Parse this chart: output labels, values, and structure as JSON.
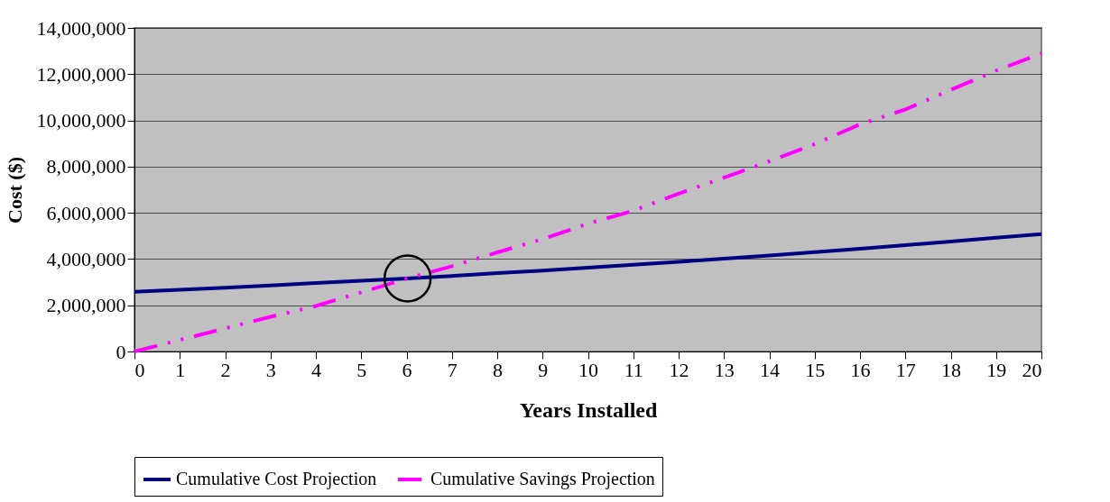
{
  "chart_data": {
    "type": "line",
    "xlabel": "Years Installed",
    "ylabel": "Cost ($)",
    "x": [
      0,
      1,
      2,
      3,
      4,
      5,
      6,
      7,
      8,
      9,
      10,
      11,
      12,
      13,
      14,
      15,
      16,
      17,
      18,
      19,
      20
    ],
    "xlim": [
      0,
      20
    ],
    "xticks": [
      0,
      1,
      2,
      3,
      4,
      5,
      6,
      7,
      8,
      9,
      10,
      11,
      12,
      13,
      14,
      15,
      16,
      17,
      18,
      19,
      20
    ],
    "ylim": [
      0,
      14000000
    ],
    "yticks": [
      0,
      {
        "value": 2000000,
        "label": "2,000,000"
      },
      {
        "value": 4000000,
        "label": "4,000,000"
      },
      {
        "value": 6000000,
        "label": "6,000,000"
      },
      {
        "value": 8000000,
        "label": "8,000,000"
      },
      {
        "value": 10000000,
        "label": "10,000,000"
      },
      {
        "value": 12000000,
        "label": "12,000,000"
      },
      {
        "value": 14000000,
        "label": "14,000,000"
      }
    ],
    "grid": "y",
    "legend": "bottom",
    "marker": "none",
    "series": [
      {
        "name": "Cumulative Cost Projection",
        "color": "#000080",
        "line_style": "solid",
        "values": [
          2580000,
          2670000,
          2760000,
          2860000,
          2960000,
          3060000,
          3160000,
          3270000,
          3390000,
          3500000,
          3630000,
          3750000,
          3880000,
          4020000,
          4150000,
          4300000,
          4450000,
          4600000,
          4760000,
          4920000,
          5080000
        ]
      },
      {
        "name": "Cumulative Savings Projection",
        "color": "#ff00ff",
        "line_style": "dashed",
        "values": [
          0,
          500000,
          1000000,
          1500000,
          1970000,
          2560000,
          3150000,
          3690000,
          4290000,
          4860000,
          5530000,
          6090000,
          6830000,
          7520000,
          8230000,
          8970000,
          9830000,
          10470000,
          11320000,
          12150000,
          12900000
        ]
      }
    ]
  }
}
